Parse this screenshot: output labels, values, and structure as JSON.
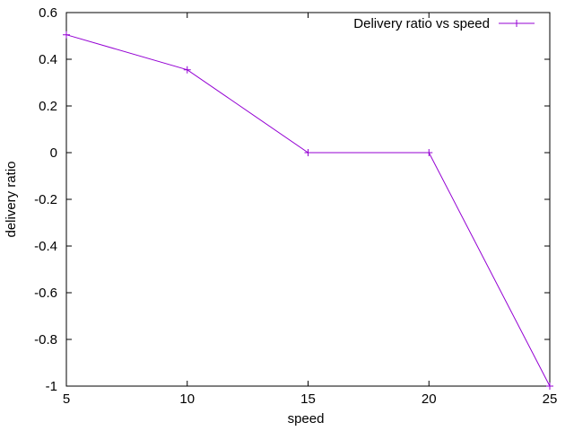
{
  "chart_data": {
    "type": "line",
    "title": "",
    "xlabel": "speed",
    "ylabel": "delivery ratio",
    "xlim": [
      5,
      25
    ],
    "ylim": [
      -1,
      0.6
    ],
    "x_ticks": [
      5,
      10,
      15,
      20,
      25
    ],
    "y_ticks": [
      -1,
      -0.8,
      -0.6,
      -0.4,
      -0.2,
      0,
      0.2,
      0.4,
      0.6
    ],
    "grid": false,
    "legend_position": "top-right",
    "series": [
      {
        "name": "Delivery ratio vs speed",
        "color": "#9400d3",
        "marker": "plus",
        "x": [
          5,
          10,
          15,
          20,
          25
        ],
        "y": [
          0.505,
          0.355,
          0,
          0,
          -1
        ]
      }
    ]
  }
}
